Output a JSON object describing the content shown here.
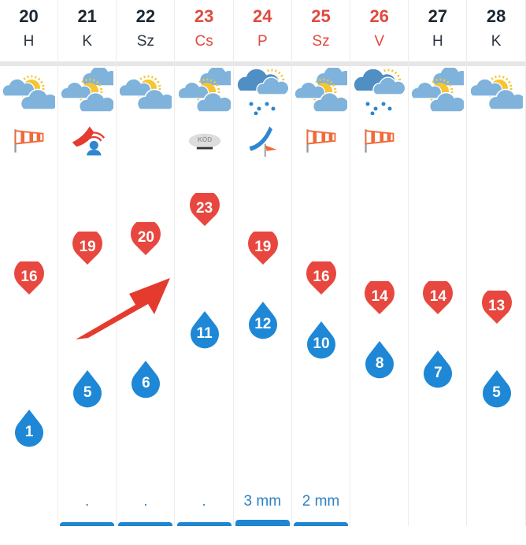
{
  "colors": {
    "max": "#e8473f",
    "min": "#1e88d6",
    "weekend": "#e04a3f",
    "text": "#1c2733"
  },
  "days": [
    {
      "date": "20",
      "day": "H",
      "weekend": false,
      "icon": "partly-cloudy-icon",
      "extra": "windsock-icon",
      "max": 16,
      "min": 1,
      "precip": "",
      "bar": 0
    },
    {
      "date": "21",
      "day": "K",
      "weekend": false,
      "icon": "mostly-cloudy-icon",
      "extra": "weather-front-warning-icon",
      "max": 19,
      "min": 5,
      "precip": ".",
      "bar": 1
    },
    {
      "date": "22",
      "day": "Sz",
      "weekend": false,
      "icon": "partly-cloudy-icon",
      "extra": "",
      "max": 20,
      "min": 6,
      "precip": ".",
      "bar": 1
    },
    {
      "date": "23",
      "day": "Cs",
      "weekend": true,
      "icon": "mostly-cloudy-icon",
      "extra": "fog-icon",
      "extra_label": "KÖD",
      "max": 23,
      "min": 11,
      "precip": ".",
      "bar": 1
    },
    {
      "date": "24",
      "day": "P",
      "weekend": true,
      "icon": "rain-icon",
      "extra": "cold-front-icon",
      "max": 19,
      "min": 12,
      "precip": "3 mm",
      "bar": 2
    },
    {
      "date": "25",
      "day": "Sz",
      "weekend": true,
      "icon": "mostly-cloudy-icon",
      "extra": "windsock-icon",
      "max": 16,
      "min": 10,
      "precip": "2 mm",
      "bar": 1
    },
    {
      "date": "26",
      "day": "V",
      "weekend": true,
      "icon": "rain-icon",
      "extra": "windsock-icon",
      "max": 14,
      "min": 8,
      "precip": "",
      "bar": 0
    },
    {
      "date": "27",
      "day": "H",
      "weekend": false,
      "icon": "mostly-cloudy-icon",
      "extra": "",
      "max": 14,
      "min": 7,
      "precip": "",
      "bar": 0
    },
    {
      "date": "28",
      "day": "K",
      "weekend": false,
      "icon": "partly-cloudy-icon",
      "extra": "",
      "max": 13,
      "min": 5,
      "precip": "",
      "bar": 0
    }
  ]
}
